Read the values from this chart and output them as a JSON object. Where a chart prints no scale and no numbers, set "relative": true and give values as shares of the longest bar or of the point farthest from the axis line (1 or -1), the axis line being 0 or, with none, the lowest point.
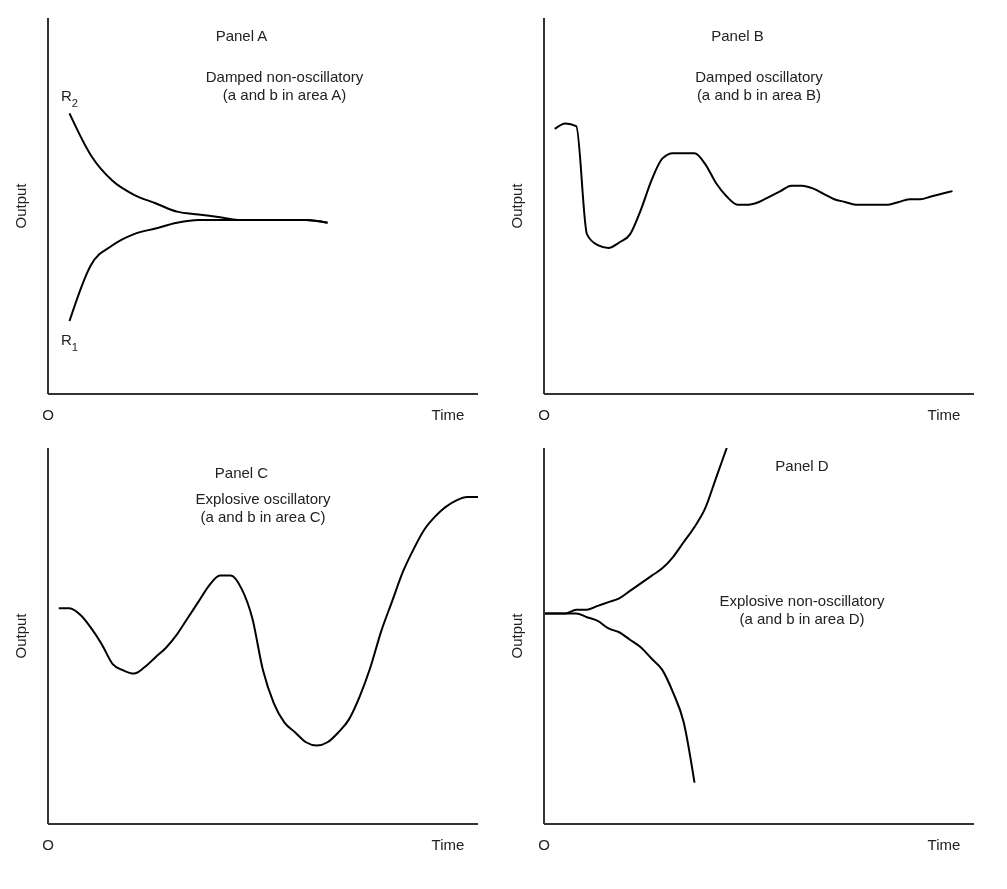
{
  "chart_data": [
    {
      "type": "line",
      "relative": true,
      "title": "Panel A",
      "subtitle": "Damped non-oscillatory\n(a and b in area A)",
      "xlabel": "Time",
      "ylabel": "Output",
      "annotations": [
        "O"
      ],
      "categories": [
        null,
        null,
        null,
        null,
        null,
        null,
        null,
        null,
        null,
        null,
        null,
        null,
        null,
        null,
        null,
        null,
        null,
        null,
        null,
        null,
        null
      ],
      "series": [
        {
          "name": "R$_{2}$",
          "color": "#000000",
          "values": [
            null,
            1.0,
            0.85,
            0.76,
            0.71,
            0.68,
            0.65,
            0.64,
            0.63,
            0.62,
            0.62,
            0.62,
            0.62,
            0.61,
            null,
            null,
            null,
            null,
            null,
            null,
            null
          ]
        },
        {
          "name": "R$_{1}$",
          "color": "#000000",
          "values": [
            null,
            0.26,
            0.46,
            0.53,
            0.57,
            0.59,
            0.61,
            0.62,
            0.62,
            0.62,
            0.62,
            0.62,
            0.62,
            0.61,
            null,
            null,
            null,
            null,
            null,
            null,
            null
          ]
        }
      ]
    },
    {
      "type": "line",
      "relative": true,
      "title": "Panel B",
      "subtitle": "Damped oscillatory\n(a and b in area B)",
      "xlabel": "Time",
      "ylabel": "Output",
      "annotations": [
        "O"
      ],
      "categories": [
        null,
        null,
        null,
        null,
        null,
        null,
        null,
        null,
        null,
        null,
        null,
        null,
        null,
        null,
        null,
        null,
        null,
        null,
        null,
        null,
        null,
        null,
        null,
        null,
        null,
        null,
        null,
        null,
        null,
        null,
        null,
        null,
        null,
        null,
        null,
        null,
        null,
        null,
        null,
        null,
        null
      ],
      "series": [
        {
          "color": "#000000",
          "values": [
            null,
            0.98,
            1,
            0.99,
            0.59,
            0.55,
            0.54,
            0.56,
            0.59,
            0.68,
            0.79,
            0.87,
            0.89,
            0.89,
            0.89,
            0.85,
            0.78,
            0.73,
            0.7,
            0.7,
            0.71,
            0.73,
            0.75,
            0.77,
            0.77,
            0.76,
            0.74,
            0.72,
            0.71,
            0.7,
            0.7,
            0.7,
            0.7,
            0.71,
            0.72,
            0.72,
            0.73,
            0.74,
            0.75,
            null,
            null
          ]
        }
      ]
    },
    {
      "type": "line",
      "relative": true,
      "title": "Panel C",
      "subtitle": "Explosive oscillatory\n(a and b in area C)",
      "xlabel": "Time",
      "ylabel": "Output",
      "annotations": [
        "O"
      ],
      "categories": [
        null,
        null,
        null,
        null,
        null,
        null,
        null,
        null,
        null,
        null,
        null,
        null,
        null,
        null,
        null,
        null,
        null,
        null,
        null,
        null,
        null,
        null,
        null,
        null,
        null,
        null,
        null,
        null,
        null,
        null,
        null,
        null,
        null,
        null,
        null,
        null,
        null,
        null,
        null,
        null,
        null
      ],
      "series": [
        {
          "color": "#000000",
          "values": [
            null,
            0.66,
            0.66,
            0.64,
            0.6,
            0.55,
            0.49,
            0.47,
            0.46,
            0.48,
            0.51,
            0.54,
            0.58,
            0.63,
            0.68,
            0.73,
            0.76,
            0.76,
            0.72,
            0.63,
            0.47,
            0.37,
            0.31,
            0.28,
            0.25,
            0.24,
            0.25,
            0.28,
            0.32,
            0.39,
            0.48,
            0.59,
            0.68,
            0.77,
            0.84,
            0.9,
            0.94,
            0.97,
            0.99,
            1,
            1
          ]
        }
      ]
    },
    {
      "type": "line",
      "relative": true,
      "title": "Panel D",
      "subtitle": "Explosive non-oscillatory\n(a and b in area D)",
      "xlabel": "Time",
      "ylabel": "Output",
      "annotations": [
        "O"
      ],
      "categories": [
        null,
        null,
        null,
        null,
        null,
        null,
        null,
        null,
        null,
        null,
        null,
        null,
        null,
        null,
        null,
        null,
        null,
        null,
        null,
        null,
        null,
        null,
        null,
        null,
        null,
        null,
        null,
        null,
        null,
        null,
        null,
        null,
        null,
        null,
        null,
        null,
        null,
        null,
        null,
        null,
        null
      ],
      "series": [
        {
          "color": "#000000",
          "values": [
            0.56,
            0.56,
            0.56,
            0.57,
            0.57,
            0.58,
            0.59,
            0.6,
            0.62,
            0.64,
            0.66,
            0.68,
            0.71,
            0.75,
            0.79,
            0.84,
            0.92,
            1,
            null,
            null,
            null,
            null,
            null,
            null,
            null,
            null,
            null,
            null,
            null,
            null,
            null,
            null,
            null,
            null,
            null,
            null,
            null,
            null,
            null,
            null,
            null
          ]
        },
        {
          "color": "#000000",
          "values": [
            0.56,
            0.56,
            0.56,
            0.56,
            0.55,
            0.54,
            0.52,
            0.51,
            0.49,
            0.47,
            0.44,
            0.41,
            0.35,
            0.27,
            0.11,
            null,
            null,
            null,
            null,
            null,
            null,
            null,
            null,
            null,
            null,
            null,
            null,
            null,
            null,
            null,
            null,
            null,
            null,
            null,
            null,
            null,
            null,
            null,
            null,
            null,
            null
          ]
        }
      ]
    }
  ]
}
